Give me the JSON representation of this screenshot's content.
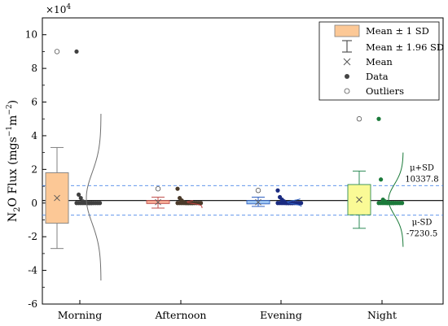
{
  "chart_data": {
    "type": "box",
    "exponent_label": "×10",
    "exponent_power": "4",
    "ylabel": {
      "main": "N",
      "sub": "2",
      "rest": "O Flux (mgs",
      "exp1": "−1",
      "mid": "m",
      "exp2": "−2",
      "end": ")"
    },
    "yscale": 10000,
    "ylim": [
      -6,
      11
    ],
    "yticks": [
      -6,
      -4,
      -2,
      0,
      2,
      4,
      6,
      8,
      10
    ],
    "categories": [
      "Morning",
      "Afternoon",
      "Evening",
      "Night"
    ],
    "colors": {
      "Morning": {
        "fill": "#fcc896",
        "stroke": "#808080",
        "dist": "#6e6e6e",
        "data": "#404040"
      },
      "Afternoon": {
        "fill": "#f7ad96",
        "stroke": "#c0504d",
        "dist": "#c04040",
        "data": "#4a3a2a"
      },
      "Evening": {
        "fill": "#9ec6f2",
        "stroke": "#2e5fc0",
        "dist": "#2e5fc0",
        "data": "#1a2a80"
      },
      "Night": {
        "fill": "#fafa96",
        "stroke": "#2e8b57",
        "dist": "#1b7a3a",
        "data": "#1b7a3a"
      }
    },
    "boxes": [
      {
        "category": "Morning",
        "mean": 3000,
        "box_low": -12000,
        "box_high": 18000,
        "whisker_low": -27000,
        "whisker_high": 33000,
        "outliers": [
          90000
        ],
        "data_points": [
          90000,
          5000,
          3000,
          1000,
          500,
          0,
          0,
          0,
          0,
          0,
          0,
          0,
          0,
          0,
          0,
          0,
          0,
          0,
          0,
          0
        ],
        "dist_min": -46000,
        "dist_max": 53000
      },
      {
        "category": "Afternoon",
        "mean": 500,
        "box_low": -300,
        "box_high": 1500,
        "whisker_low": -3000,
        "whisker_high": 3500,
        "outliers": [
          8500
        ],
        "data_points": [
          8500,
          3000,
          1500,
          500,
          0,
          0,
          0,
          0,
          0,
          0,
          0,
          0,
          0,
          0,
          0,
          0,
          0,
          0,
          0,
          0
        ],
        "dist_min": -3000,
        "dist_max": 1500
      },
      {
        "category": "Evening",
        "mean": 500,
        "box_low": -500,
        "box_high": 1500,
        "whisker_low": -2000,
        "whisker_high": 3500,
        "outliers": [
          7500
        ],
        "data_points": [
          7500,
          3500,
          2000,
          1000,
          0,
          0,
          0,
          0,
          0,
          0,
          0,
          0,
          0,
          0,
          0,
          0,
          0,
          0,
          0,
          0
        ],
        "dist_min": -2000,
        "dist_max": 2500
      },
      {
        "category": "Night",
        "mean": 2000,
        "box_low": -7000,
        "box_high": 11000,
        "whisker_low": -15000,
        "whisker_high": 19000,
        "outliers": [
          50000
        ],
        "data_points": [
          50000,
          14000,
          2000,
          1000,
          0,
          0,
          0,
          0,
          0,
          0,
          0,
          0,
          0,
          0,
          0,
          0,
          0,
          0,
          0,
          0
        ],
        "dist_min": -26000,
        "dist_max": 30000
      }
    ],
    "overall_mean": 1500,
    "reference_lines": [
      {
        "name": "μ+SD",
        "value": 10337.8,
        "label": "10337.8"
      },
      {
        "name": "μ-SD",
        "value": -7230.5,
        "label": "-7230.5"
      }
    ],
    "legend": {
      "position": "top-right",
      "items": [
        {
          "label": "Mean ± 1 SD",
          "symbol": "box"
        },
        {
          "label": "Mean ± 1.96 SD",
          "symbol": "whisker"
        },
        {
          "label": "Mean",
          "symbol": "cross"
        },
        {
          "label": "Data",
          "symbol": "filled-dot"
        },
        {
          "label": "Outliers",
          "symbol": "open-dot"
        }
      ]
    }
  }
}
